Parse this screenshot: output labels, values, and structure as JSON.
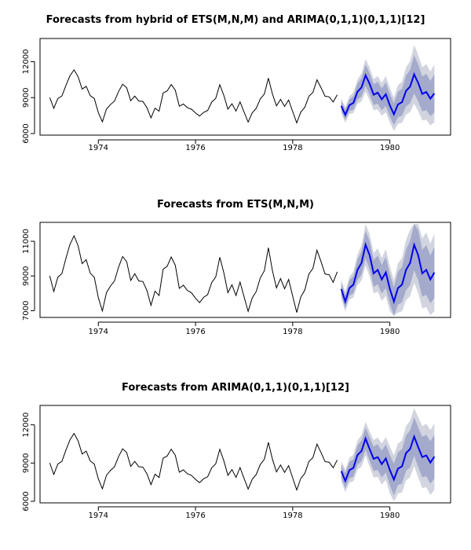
{
  "chart_data": [
    {
      "type": "line",
      "title": "Forecasts from hybrid of ETS(M,N,M) and ARIMA(0,1,1)(0,1,1)[12]",
      "xlabel": "",
      "ylabel": "",
      "xlim": [
        1972.8,
        1981.25
      ],
      "ylim": [
        6000,
        13800
      ],
      "x_ticks": [
        1974,
        1976,
        1978,
        1980
      ],
      "x_tick_labels": [
        "1974",
        "1976",
        "1978",
        "1980"
      ],
      "y_ticks": [
        6000,
        9000,
        12000
      ],
      "y_tick_labels": [
        "6000",
        "9000",
        "12000"
      ],
      "history": {
        "start": 1973,
        "frequency": 12,
        "values": [
          9007,
          8106,
          8928,
          9137,
          10017,
          10826,
          11317,
          10744,
          9713,
          9938,
          9161,
          8927,
          7750,
          6981,
          8038,
          8422,
          8714,
          9512,
          10120,
          9823,
          8743,
          9129,
          8710,
          8680,
          8162,
          7306,
          8124,
          7870,
          9387,
          9556,
          10093,
          9620,
          8285,
          8466,
          8160,
          8034,
          7717,
          7461,
          7767,
          7925,
          8623,
          8945,
          10078,
          9179,
          8037,
          8488,
          7874,
          8647,
          7792,
          6957,
          7726,
          8106,
          8890,
          9299,
          10625,
          9302,
          8314,
          8850,
          8265,
          8796,
          7836,
          6892,
          7791,
          8192,
          9115,
          9434,
          10484,
          9827,
          9110,
          9070,
          8633,
          9240
        ]
      },
      "forecast": {
        "start": 1979,
        "frequency": 12,
        "mean": [
          8310,
          7560,
          8370,
          8560,
          9490,
          9850,
          10860,
          10150,
          9240,
          9410,
          8860,
          9280,
          8350,
          7610,
          8430,
          8620,
          9560,
          9920,
          10940,
          10220,
          9310,
          9470,
          8920,
          9350
        ],
        "lo80": [
          7900,
          7140,
          7890,
          8000,
          8820,
          9090,
          9970,
          9250,
          8380,
          8490,
          7960,
          8290,
          7400,
          6700,
          7370,
          7500,
          8270,
          8530,
          9350,
          8690,
          7860,
          7950,
          7450,
          7760
        ],
        "hi80": [
          8720,
          7980,
          8850,
          9120,
          10160,
          10610,
          11750,
          11050,
          10100,
          10330,
          9760,
          10270,
          9300,
          8520,
          9490,
          9740,
          10850,
          11310,
          12530,
          11750,
          10760,
          10990,
          10390,
          10940
        ],
        "lo95": [
          7680,
          6920,
          7630,
          7700,
          8470,
          8690,
          9500,
          8780,
          7930,
          8010,
          7490,
          7770,
          6900,
          6220,
          6810,
          6910,
          7590,
          7790,
          8510,
          7880,
          7100,
          7150,
          6680,
          6930
        ],
        "hi95": [
          8940,
          8200,
          9110,
          9420,
          10510,
          11010,
          12220,
          11520,
          10550,
          10810,
          10230,
          10790,
          9800,
          9000,
          10050,
          10330,
          11530,
          12050,
          13370,
          12560,
          11520,
          11790,
          11160,
          11770
        ]
      }
    },
    {
      "type": "line",
      "title": "Forecasts from ETS(M,N,M)",
      "xlabel": "",
      "ylabel": "",
      "xlim": [
        1972.8,
        1981.25
      ],
      "ylim": [
        6700,
        12000
      ],
      "x_ticks": [
        1974,
        1976,
        1978,
        1980
      ],
      "x_tick_labels": [
        "1974",
        "1976",
        "1978",
        "1980"
      ],
      "y_ticks": [
        7000,
        9000,
        11000
      ],
      "y_tick_labels": [
        "7000",
        "9000",
        "11000"
      ],
      "history": {
        "start": 1973,
        "frequency": 12,
        "values": [
          9007,
          8106,
          8928,
          9137,
          10017,
          10826,
          11317,
          10744,
          9713,
          9938,
          9161,
          8927,
          7750,
          6981,
          8038,
          8422,
          8714,
          9512,
          10120,
          9823,
          8743,
          9129,
          8710,
          8680,
          8162,
          7306,
          8124,
          7870,
          9387,
          9556,
          10093,
          9620,
          8285,
          8466,
          8160,
          8034,
          7717,
          7461,
          7767,
          7925,
          8623,
          8945,
          10078,
          9179,
          8037,
          8488,
          7874,
          8647,
          7792,
          6957,
          7726,
          8106,
          8890,
          9299,
          10625,
          9302,
          8314,
          8850,
          8265,
          8796,
          7836,
          6892,
          7791,
          8192,
          9115,
          9434,
          10484,
          9827,
          9110,
          9070,
          8633,
          9240
        ]
      },
      "forecast": {
        "start": 1979,
        "frequency": 12,
        "mean": [
          8250,
          7520,
          8300,
          8500,
          9350,
          9750,
          10800,
          10200,
          9150,
          9350,
          8800,
          9200,
          8250,
          7520,
          8300,
          8500,
          9350,
          9750,
          10800,
          10200,
          9150,
          9350,
          8800,
          9200
        ],
        "lo80": [
          7880,
          7150,
          7860,
          8000,
          8760,
          9080,
          10000,
          9390,
          8380,
          8520,
          7980,
          8300,
          7390,
          6700,
          7350,
          7480,
          8180,
          8480,
          9330,
          8750,
          7800,
          7920,
          7420,
          7720
        ],
        "hi80": [
          8620,
          7890,
          8740,
          9000,
          9940,
          10420,
          11600,
          11010,
          9920,
          10180,
          9620,
          10100,
          9110,
          8340,
          9250,
          9520,
          10520,
          11020,
          12000,
          11650,
          10500,
          10780,
          10180,
          10680
        ],
        "lo95": [
          7690,
          6960,
          7640,
          7760,
          8460,
          8740,
          9600,
          8980,
          7990,
          8100,
          7570,
          7850,
          6960,
          6700,
          6880,
          6960,
          7600,
          7840,
          8600,
          8020,
          7130,
          7200,
          6730,
          6980
        ],
        "hi95": [
          8810,
          8080,
          8960,
          9240,
          10240,
          10760,
          12000,
          11420,
          10310,
          10600,
          10030,
          10550,
          9540,
          8750,
          9720,
          10040,
          11100,
          11660,
          12000,
          12000,
          11170,
          11500,
          10870,
          11420
        ]
      }
    },
    {
      "type": "line",
      "title": "Forecasts from ARIMA(0,1,1)(0,1,1)[12]",
      "xlabel": "",
      "ylabel": "",
      "xlim": [
        1972.8,
        1981.25
      ],
      "ylim": [
        6000,
        13400
      ],
      "x_ticks": [
        1974,
        1976,
        1978,
        1980
      ],
      "x_tick_labels": [
        "1974",
        "1976",
        "1978",
        "1980"
      ],
      "y_ticks": [
        6000,
        9000,
        12000
      ],
      "y_tick_labels": [
        "6000",
        "9000",
        "12000"
      ],
      "history": {
        "start": 1973,
        "frequency": 12,
        "values": [
          9007,
          8106,
          8928,
          9137,
          10017,
          10826,
          11317,
          10744,
          9713,
          9938,
          9161,
          8927,
          7750,
          6981,
          8038,
          8422,
          8714,
          9512,
          10120,
          9823,
          8743,
          9129,
          8710,
          8680,
          8162,
          7306,
          8124,
          7870,
          9387,
          9556,
          10093,
          9620,
          8285,
          8466,
          8160,
          8034,
          7717,
          7461,
          7767,
          7925,
          8623,
          8945,
          10078,
          9179,
          8037,
          8488,
          7874,
          8647,
          7792,
          6957,
          7726,
          8106,
          8890,
          9299,
          10625,
          9302,
          8314,
          8850,
          8265,
          8796,
          7836,
          6892,
          7791,
          8192,
          9115,
          9434,
          10484,
          9827,
          9110,
          9070,
          8633,
          9240
        ]
      },
      "forecast": {
        "start": 1979,
        "frequency": 12,
        "mean": [
          8370,
          7600,
          8440,
          8620,
          9630,
          9950,
          10920,
          10100,
          9330,
          9470,
          8920,
          9360,
          8450,
          7700,
          8560,
          8740,
          9780,
          10100,
          11080,
          10250,
          9470,
          9600,
          9040,
          9500
        ],
        "lo80": [
          7850,
          7020,
          7800,
          7930,
          8880,
          9140,
          10060,
          9190,
          8370,
          8460,
          7870,
          8260,
          7250,
          6460,
          7270,
          7400,
          8390,
          8650,
          9570,
          8700,
          7880,
          7970,
          7370,
          7790
        ],
        "hi80": [
          8890,
          8180,
          9080,
          9310,
          10380,
          10760,
          11780,
          11010,
          10290,
          10480,
          9970,
          10460,
          9650,
          8940,
          9850,
          10080,
          11170,
          11550,
          12590,
          11800,
          11060,
          11230,
          10710,
          11210
        ],
        "lo95": [
          7570,
          6710,
          7460,
          7570,
          8480,
          8710,
          9600,
          8710,
          7860,
          7930,
          7310,
          7680,
          6610,
          6000,
          6590,
          6690,
          7650,
          7880,
          8770,
          7880,
          7040,
          7110,
          6490,
          6880
        ],
        "hi95": [
          9170,
          8490,
          9420,
          9670,
          10780,
          11190,
          12240,
          11490,
          10800,
          11010,
          10530,
          11040,
          10290,
          9600,
          10530,
          10790,
          11910,
          12320,
          13300,
          12620,
          11900,
          12090,
          11590,
          12120
        ]
      }
    }
  ]
}
